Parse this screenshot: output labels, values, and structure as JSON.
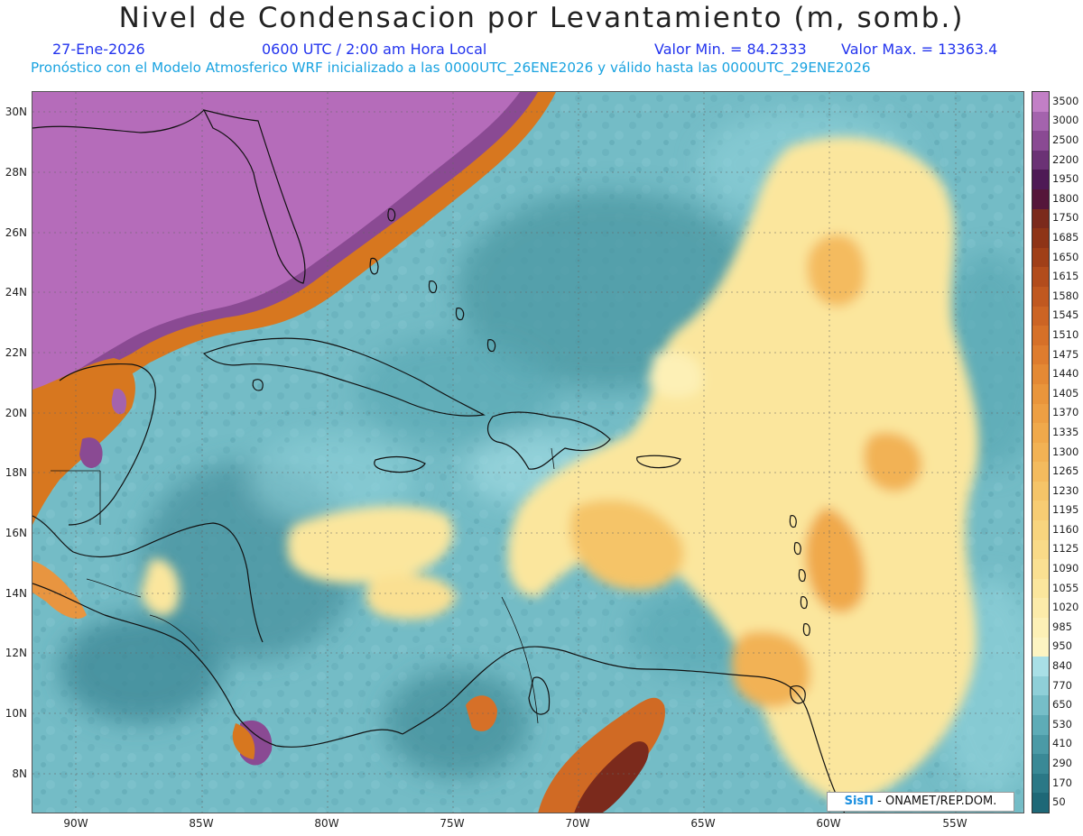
{
  "title": "Nivel de Condensacion por Levantamiento (m, somb.)",
  "date": "27-Ene-2026",
  "time": "0600 UTC / 2:00 am Hora Local",
  "min_value": "Valor Min. = 84.2333",
  "max_value": "Valor Max. = 13363.4",
  "forecast_info": "Pronóstico con el Modelo Atmosferico WRF inicializado a las 0000UTC_26ENE2026 y válido hasta las  0000UTC_29ENE2026",
  "lat_ticks": [
    "30N",
    "28N",
    "26N",
    "24N",
    "22N",
    "20N",
    "18N",
    "16N",
    "14N",
    "12N",
    "10N",
    "8N"
  ],
  "lon_ticks": [
    "90W",
    "85W",
    "80W",
    "75W",
    "70W",
    "65W",
    "60W",
    "55W"
  ],
  "colorbar_labels": [
    "3500",
    "3000",
    "2500",
    "2200",
    "1950",
    "1800",
    "1750",
    "1685",
    "1650",
    "1615",
    "1580",
    "1545",
    "1510",
    "1475",
    "1440",
    "1405",
    "1370",
    "1335",
    "1300",
    "1265",
    "1230",
    "1195",
    "1160",
    "1125",
    "1090",
    "1055",
    "1020",
    "985",
    "950",
    "840",
    "770",
    "650",
    "530",
    "410",
    "290",
    "170",
    "50"
  ],
  "colorbar_colors": [
    "#c27fc6",
    "#a463ad",
    "#8a4a93",
    "#6b3275",
    "#4e1a55",
    "#55163a",
    "#7b2a1c",
    "#8e3417",
    "#a03f18",
    "#b24c1c",
    "#c05820",
    "#cc6424",
    "#d67028",
    "#de7c2e",
    "#e48934",
    "#e9953b",
    "#ed9f43",
    "#f0a94b",
    "#f2b254",
    "#f4bb5e",
    "#f5c468",
    "#f7cc73",
    "#f8d47e",
    "#f9da88",
    "#fae092",
    "#fbe69d",
    "#fcebaa",
    "#fdf0b6",
    "#fdf4c2",
    "#a9dfe6",
    "#8fcfd8",
    "#76bec8",
    "#5eacb7",
    "#4b9aa6",
    "#3a8996",
    "#2b7886",
    "#1e6877"
  ],
  "credit": {
    "brand": "SisΠ",
    "text": "- ONAMET/REP.DOM."
  }
}
